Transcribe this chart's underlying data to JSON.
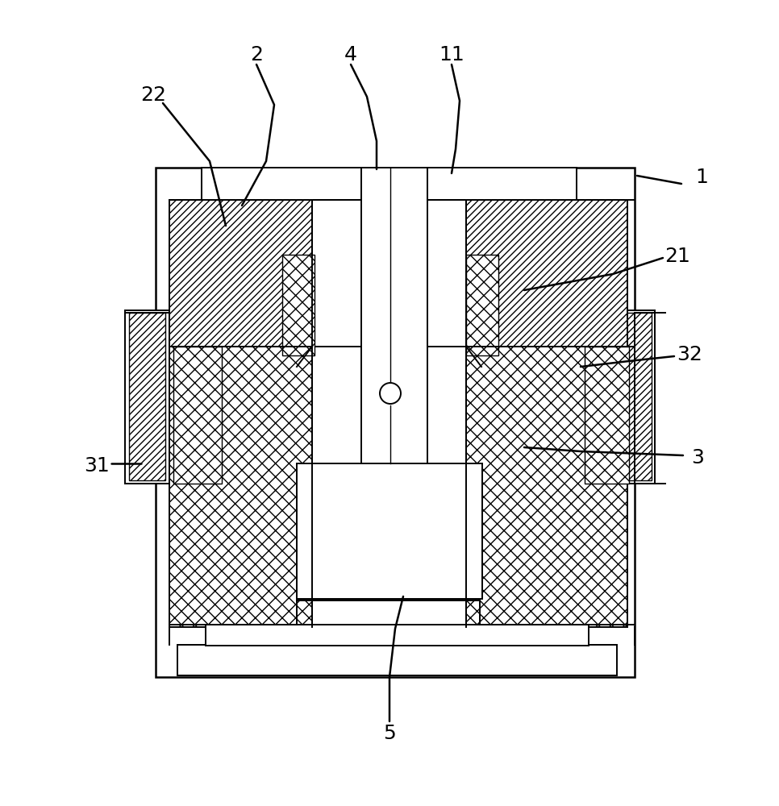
{
  "bg_color": "#ffffff",
  "line_color": "#000000",
  "label_fontsize": 18,
  "figsize": [
    9.66,
    10.0
  ],
  "dpi": 100
}
